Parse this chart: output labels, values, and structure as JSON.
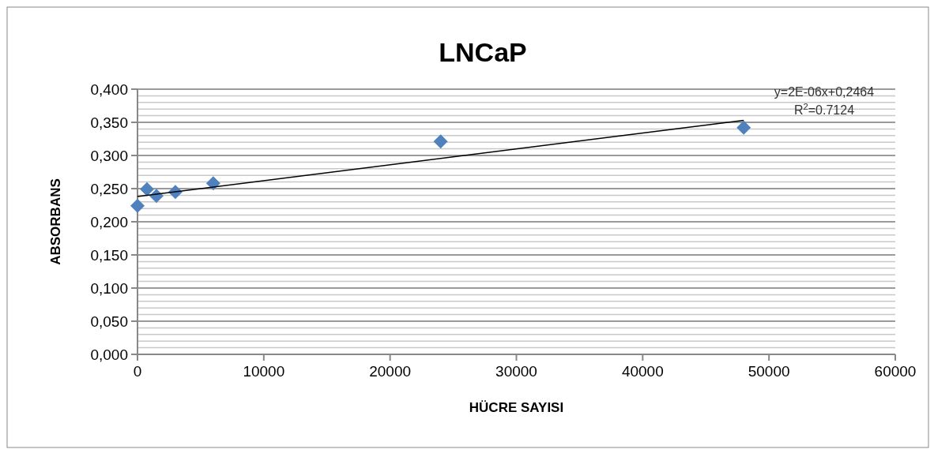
{
  "chart_data": {
    "type": "scatter",
    "title": "LNCaP",
    "xlabel": "HÜCRE SAYISI",
    "ylabel": "ABSORBANS",
    "x": [
      0,
      750,
      1500,
      3000,
      6000,
      24000,
      48000
    ],
    "series": [
      {
        "color": "#4f81bd",
        "marker": "diamond",
        "values": [
          0.224,
          0.249,
          0.239,
          0.245,
          0.258,
          0.321,
          0.342
        ]
      },
      {
        "type": "line",
        "color": "#000000",
        "x": [
          0,
          48000
        ],
        "values": [
          0.238,
          0.353
        ],
        "marker": "none"
      }
    ],
    "xlim": [
      0,
      60000
    ],
    "xticks": [
      0,
      10000,
      20000,
      30000,
      40000,
      50000,
      60000
    ],
    "ylim": [
      0,
      0.4
    ],
    "yticks": [
      {
        "value": 0,
        "label": "0,000"
      },
      {
        "value": 0.01,
        "label": null
      },
      {
        "value": 0.02,
        "label": null
      },
      {
        "value": 0.03,
        "label": null
      },
      {
        "value": 0.04,
        "label": null
      },
      {
        "value": 0.05,
        "label": "0,050"
      },
      {
        "value": 0.06,
        "label": null
      },
      {
        "value": 0.07,
        "label": null
      },
      {
        "value": 0.08,
        "label": null
      },
      {
        "value": 0.09,
        "label": null
      },
      {
        "value": 0.1,
        "label": "0,100"
      },
      {
        "value": 0.11,
        "label": null
      },
      {
        "value": 0.12,
        "label": null
      },
      {
        "value": 0.13,
        "label": null
      },
      {
        "value": 0.14,
        "label": null
      },
      {
        "value": 0.15,
        "label": "0,150"
      },
      {
        "value": 0.16,
        "label": null
      },
      {
        "value": 0.17,
        "label": null
      },
      {
        "value": 0.18,
        "label": null
      },
      {
        "value": 0.19,
        "label": null
      },
      {
        "value": 0.2,
        "label": "0,200"
      },
      {
        "value": 0.21,
        "label": null
      },
      {
        "value": 0.22,
        "label": null
      },
      {
        "value": 0.23,
        "label": null
      },
      {
        "value": 0.24,
        "label": null
      },
      {
        "value": 0.25,
        "label": "0,250"
      },
      {
        "value": 0.26,
        "label": null
      },
      {
        "value": 0.27,
        "label": null
      },
      {
        "value": 0.28,
        "label": null
      },
      {
        "value": 0.29,
        "label": null
      },
      {
        "value": 0.3,
        "label": "0,300"
      },
      {
        "value": 0.31,
        "label": null
      },
      {
        "value": 0.32,
        "label": null
      },
      {
        "value": 0.33,
        "label": null
      },
      {
        "value": 0.34,
        "label": null
      },
      {
        "value": 0.35,
        "label": "0,350"
      },
      {
        "value": 0.36,
        "label": null
      },
      {
        "value": 0.37,
        "label": null
      },
      {
        "value": 0.38,
        "label": null
      },
      {
        "value": 0.39,
        "label": null
      },
      {
        "value": 0.4,
        "label": "0,400"
      }
    ],
    "grid": "y",
    "annotations": [
      "y=2E-06x+0,2464",
      "R$^{2}$=0.7124"
    ]
  }
}
